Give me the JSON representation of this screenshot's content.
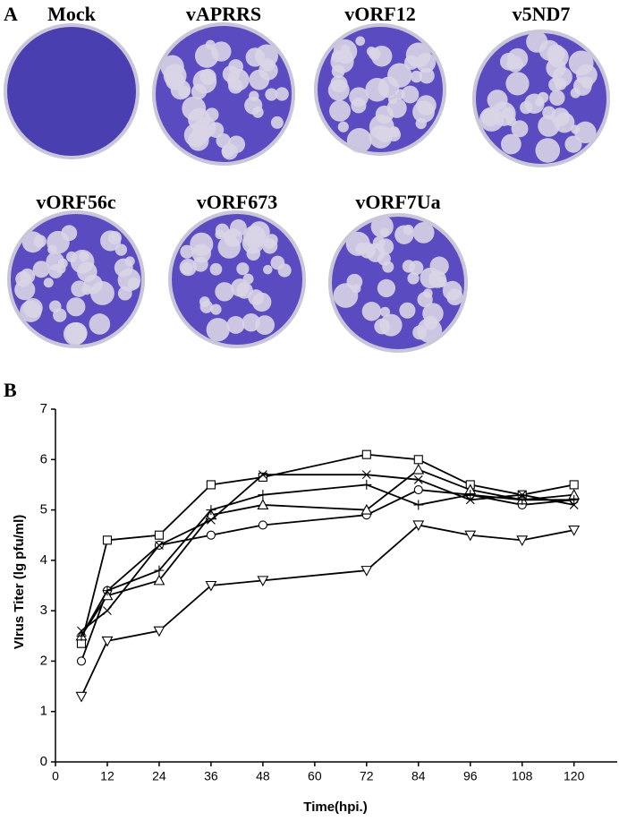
{
  "panel_a": {
    "label": "A",
    "plates": [
      "Mock",
      "vAPRRS",
      "vORF12",
      "v5ND7",
      "vORF56c",
      "vORF673",
      "vORF7Ua"
    ]
  },
  "chart_data": {
    "type": "line",
    "panel_label": "B",
    "x_label": "Time(hpi.)",
    "y_label": "VIrus Titer (lg pfu/ml)",
    "x": [
      6,
      12,
      24,
      36,
      48,
      72,
      84,
      96,
      108,
      120
    ],
    "series": [
      {
        "marker": "square",
        "color": "#000000",
        "values": [
          2.35,
          4.4,
          4.5,
          5.5,
          5.65,
          6.1,
          6.0,
          5.5,
          5.3,
          5.5
        ]
      },
      {
        "marker": "circle",
        "color": "#000000",
        "values": [
          2.0,
          3.4,
          4.3,
          4.5,
          4.7,
          4.9,
          5.4,
          5.3,
          5.1,
          5.2
        ]
      },
      {
        "marker": "triangle-up",
        "color": "#000000",
        "values": [
          2.5,
          3.3,
          3.6,
          4.9,
          5.1,
          5.0,
          5.8,
          5.4,
          5.2,
          5.3
        ]
      },
      {
        "marker": "plus",
        "color": "#000000",
        "values": [
          2.5,
          3.4,
          3.8,
          5.0,
          5.3,
          5.5,
          5.1,
          5.3,
          5.2,
          5.2
        ]
      },
      {
        "marker": "x",
        "color": "#000000",
        "values": [
          2.6,
          3.0,
          4.3,
          4.8,
          5.7,
          5.7,
          5.6,
          5.2,
          5.3,
          5.1
        ]
      },
      {
        "marker": "triangle-down",
        "color": "#000000",
        "values": [
          1.3,
          2.4,
          2.6,
          3.5,
          3.6,
          3.8,
          4.7,
          4.5,
          4.4,
          4.6
        ]
      }
    ],
    "xlim": [
      0,
      130
    ],
    "xticks": [
      0,
      12,
      24,
      36,
      48,
      60,
      72,
      84,
      96,
      108,
      120
    ],
    "ylim": [
      0,
      7
    ],
    "yticks": [
      0,
      1,
      2,
      3,
      4,
      5,
      6,
      7
    ],
    "grid": false
  }
}
